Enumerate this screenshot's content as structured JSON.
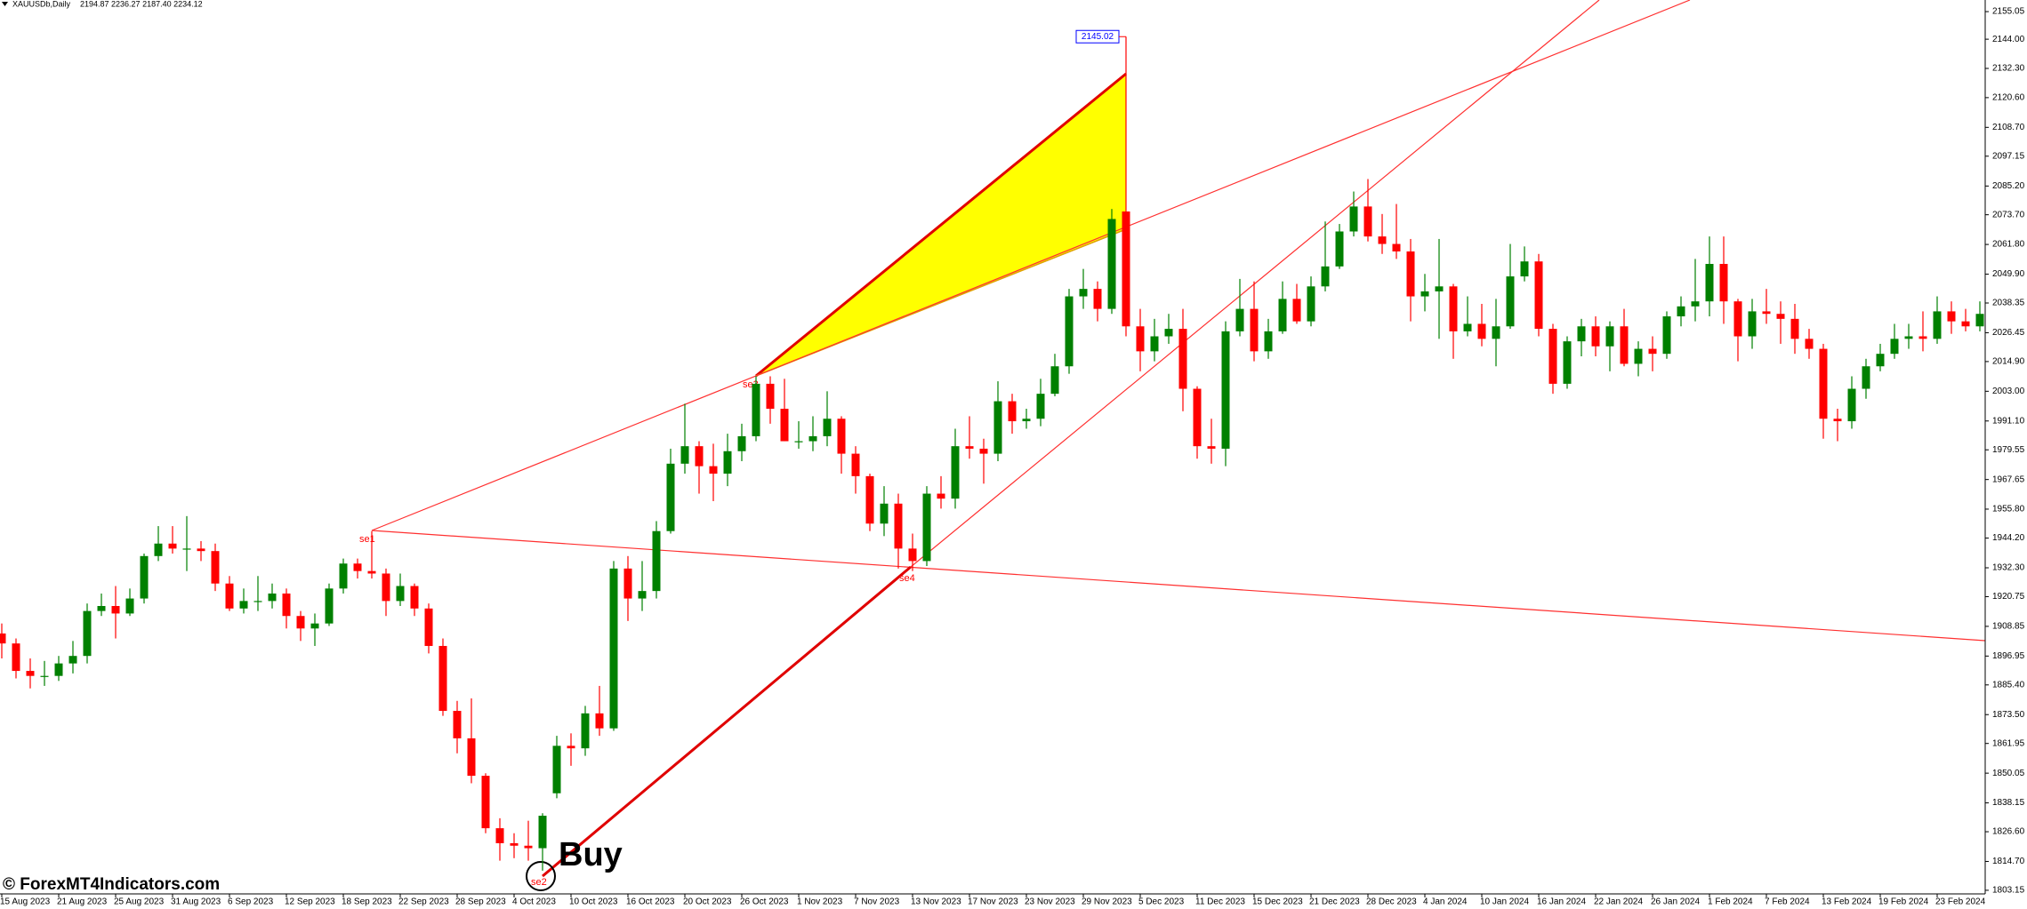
{
  "chart_data": {
    "type": "candlestick",
    "symbol": "XAUUSDb,Daily",
    "header_values": "2194.87 2236.27 2187.40 2234.12",
    "watermark": "© ForexMT4Indicators.com",
    "annotations": [
      "se1",
      "se2",
      "se3",
      "se4",
      "Buy"
    ],
    "bull_color": "#008000",
    "bear_color": "#ff0000",
    "categories": [
      "15 Aug 2023",
      null,
      null,
      null,
      "21 Aug 2023",
      null,
      null,
      null,
      "25 Aug 2023",
      null,
      null,
      null,
      "31 Aug 2023",
      null,
      null,
      null,
      "6 Sep 2023",
      null,
      null,
      null,
      "12 Sep 2023",
      null,
      null,
      null,
      "18 Sep 2023",
      null,
      null,
      null,
      "22 Sep 2023",
      null,
      null,
      null,
      "28 Sep 2023",
      null,
      null,
      null,
      "4 Oct 2023",
      null,
      null,
      null,
      "10 Oct 2023",
      null,
      null,
      null,
      "16 Oct 2023",
      null,
      null,
      null,
      "20 Oct 2023",
      null,
      null,
      null,
      "26 Oct 2023",
      null,
      null,
      null,
      "1 Nov 2023",
      null,
      null,
      null,
      "7 Nov 2023",
      null,
      null,
      null,
      "13 Nov 2023",
      null,
      null,
      null,
      "17 Nov 2023",
      null,
      null,
      null,
      "23 Nov 2023",
      null,
      null,
      null,
      "29 Nov 2023",
      null,
      null,
      null,
      "5 Dec 2023",
      null,
      null,
      null,
      "11 Dec 2023",
      null,
      null,
      null,
      "15 Dec 2023",
      null,
      null,
      null,
      "21 Dec 2023",
      null,
      null,
      null,
      "28 Dec 2023",
      null,
      null,
      null,
      "4 Jan 2024",
      null,
      null,
      null,
      "10 Jan 2024",
      null,
      null,
      null,
      "16 Jan 2024",
      null,
      null,
      null,
      "22 Jan 2024",
      null,
      null,
      null,
      "26 Jan 2024",
      null,
      null,
      null,
      "1 Feb 2024",
      null,
      null,
      null,
      "7 Feb 2024",
      null,
      null,
      null,
      "13 Feb 2024",
      null,
      null,
      null,
      "19 Feb 2024",
      null,
      null,
      null,
      "23 Feb 2024",
      null,
      null,
      null
    ],
    "open": [
      1906,
      1902,
      1891,
      1889,
      1889,
      1894,
      1897,
      1915,
      1917,
      1914,
      1920,
      1937,
      1942,
      1940,
      1940,
      1939,
      1926,
      1916,
      1919,
      1919,
      1922,
      1913,
      1908,
      1910,
      1924,
      1934,
      1931,
      1930,
      1919,
      1925,
      1916,
      1901,
      1875,
      1864,
      1849,
      1828,
      1822,
      1821,
      1820,
      1842,
      1861,
      1860,
      1874,
      1868,
      1932,
      1920,
      1923,
      1947,
      1974,
      1981,
      1973,
      1970,
      1979,
      1985,
      2006,
      1996,
      1983,
      1983,
      1985,
      1992,
      1978,
      1969,
      1950,
      1958,
      1940,
      1935,
      1962,
      1960,
      1981,
      1980,
      1978,
      1999,
      1991,
      1992,
      2002,
      2013,
      2041,
      2044,
      2036,
      2075,
      2029,
      2019,
      2025,
      2028,
      2004,
      1981,
      1980,
      2027,
      2036,
      2019,
      2027,
      2040,
      2031,
      2045,
      2053,
      2067,
      2077,
      2065,
      2062,
      2059,
      2041,
      2043,
      2045,
      2027,
      2030,
      2024,
      2029,
      2049,
      2055,
      2028,
      2006,
      2023,
      2029,
      2021,
      2029,
      2014,
      2020,
      2018,
      2033,
      2037,
      2039,
      2054,
      2039,
      2025,
      2035,
      2034,
      2032,
      2024,
      2020,
      1992,
      1991,
      2004,
      2013,
      2018,
      2024,
      2025,
      2024,
      2035,
      2031,
      2029
    ],
    "high": [
      1910,
      1904,
      1896,
      1895,
      1897,
      1903,
      1918,
      1922,
      1925,
      1924,
      1938,
      1949,
      1949,
      1953,
      1943,
      1942,
      1929,
      1924,
      1929,
      1926,
      1924,
      1915,
      1914,
      1926,
      1936,
      1936,
      1947,
      1932,
      1930,
      1926,
      1918,
      1904,
      1879,
      1880,
      1850,
      1832,
      1826,
      1831,
      1834,
      1865,
      1866,
      1877,
      1885,
      1935,
      1937,
      1935,
      1951,
      1980,
      1998,
      1983,
      1982,
      1986,
      1990,
      2009,
      2009,
      2008,
      1991,
      1993,
      2003,
      1993,
      1981,
      1970,
      1965,
      1962,
      1946,
      1965,
      1969,
      1988,
      1993,
      1984,
      2007,
      2002,
      1996,
      2008,
      2018,
      2044,
      2052,
      2047,
      2076,
      2145.02,
      2036,
      2032,
      2034,
      2036,
      2005,
      1992,
      2031,
      2048,
      2047,
      2032,
      2047,
      2046,
      2049,
      2071,
      2070,
      2083,
      2088,
      2074,
      2078,
      2064,
      2050,
      2064,
      2046,
      2041,
      2038,
      2040,
      2062,
      2061,
      2058,
      2030,
      2025,
      2032,
      2033,
      2031,
      2036,
      2023,
      2025,
      2035,
      2041,
      2056,
      2065,
      2065,
      2040,
      2040,
      2044,
      2039,
      2038,
      2028,
      2022,
      1996,
      2009,
      2016,
      2022,
      2030,
      2030,
      2035,
      2041,
      2039,
      2036,
      2039
    ],
    "low": [
      1896,
      1888,
      1884,
      1885,
      1887,
      1890,
      1894,
      1913,
      1904,
      1913,
      1918,
      1935,
      1938,
      1931,
      1935,
      1923,
      1915,
      1914,
      1915,
      1916,
      1908,
      1903,
      1901,
      1909,
      1922,
      1928,
      1928,
      1913,
      1917,
      1913,
      1898,
      1873,
      1858,
      1846,
      1826,
      1815,
      1816,
      1815,
      1811,
      1840,
      1853,
      1857,
      1865,
      1867,
      1911,
      1915,
      1920,
      1946,
      1970,
      1962,
      1959,
      1965,
      1975,
      1983,
      1990,
      1983,
      1980,
      1979,
      1981,
      1970,
      1962,
      1947,
      1945,
      1932,
      1931,
      1933,
      1956,
      1956,
      1976,
      1966,
      1975,
      1986,
      1988,
      1989,
      2001,
      2010,
      2036,
      2031,
      2034,
      2025,
      2011,
      2015,
      2022,
      1995,
      1976,
      1974,
      1973,
      2025,
      2015,
      2016,
      2026,
      2030,
      2029,
      2043,
      2052,
      2065,
      2063,
      2058,
      2056,
      2031,
      2035,
      2024,
      2016,
      2025,
      2021,
      2013,
      2028,
      2047,
      2025,
      2002,
      2004,
      2017,
      2017,
      2011,
      2013,
      2009,
      2011,
      2016,
      2029,
      2031,
      2033,
      2030,
      2015,
      2020,
      2030,
      2022,
      2018,
      2016,
      1984,
      1983,
      1988,
      2000,
      2011,
      2016,
      2020,
      2019,
      2022,
      2026,
      2027,
      2027
    ],
    "close": [
      1902,
      1891,
      1889,
      1889,
      1894,
      1897,
      1915,
      1917,
      1914,
      1920,
      1937,
      1942,
      1940,
      1940,
      1939,
      1926,
      1916,
      1919,
      1919,
      1922,
      1913,
      1908,
      1910,
      1924,
      1934,
      1931,
      1930,
      1919,
      1925,
      1916,
      1901,
      1875,
      1864,
      1849,
      1828,
      1822,
      1821,
      1820,
      1833,
      1861,
      1860,
      1874,
      1868,
      1932,
      1920,
      1923,
      1947,
      1974,
      1981,
      1973,
      1970,
      1979,
      1985,
      2006,
      1996,
      1983,
      1983,
      1985,
      1992,
      1978,
      1969,
      1950,
      1958,
      1940,
      1935,
      1962,
      1960,
      1981,
      1980,
      1978,
      1999,
      1991,
      1992,
      2002,
      2013,
      2041,
      2044,
      2036,
      2072,
      2029,
      2019,
      2025,
      2028,
      2004,
      1981,
      1980,
      2027,
      2036,
      2019,
      2027,
      2040,
      2031,
      2045,
      2053,
      2067,
      2077,
      2065,
      2062,
      2059,
      2041,
      2043,
      2045,
      2027,
      2030,
      2024,
      2029,
      2049,
      2055,
      2028,
      2006,
      2023,
      2029,
      2021,
      2029,
      2014,
      2020,
      2018,
      2033,
      2037,
      2039,
      2054,
      2039,
      2025,
      2035,
      2034,
      2032,
      2024,
      2020,
      1992,
      1991,
      2004,
      2013,
      2018,
      2024,
      2025,
      2024,
      2035,
      2031,
      2029,
      2034
    ],
    "ylim": [
      1801.7,
      2159.7
    ],
    "yticks": [
      2155.05,
      {
        "value": 2144.0,
        "label": "2144.00"
      },
      {
        "value": 2132.3,
        "label": "2132.30"
      },
      {
        "value": 2120.6,
        "label": "2120.60"
      },
      {
        "value": 2108.7,
        "label": "2108.70"
      },
      2097.15,
      {
        "value": 2085.2,
        "label": "2085.20"
      },
      {
        "value": 2073.7,
        "label": "2073.70"
      },
      {
        "value": 2061.8,
        "label": "2061.80"
      },
      {
        "value": 2049.9,
        "label": "2049.90"
      },
      2038.35,
      2026.45,
      {
        "value": 2014.9,
        "label": "2014.90"
      },
      {
        "value": 2003.0,
        "label": "2003.00"
      },
      {
        "value": 1991.1,
        "label": "1991.10"
      },
      1979.55,
      1967.65,
      {
        "value": 1955.8,
        "label": "1955.80"
      },
      {
        "value": 1944.2,
        "label": "1944.20"
      },
      {
        "value": 1932.3,
        "label": "1932.30"
      },
      1920.75,
      1908.85,
      1896.95,
      {
        "value": 1885.4,
        "label": "1885.40"
      },
      {
        "value": 1873.5,
        "label": "1873.50"
      },
      1861.95,
      1850.05,
      1838.15,
      {
        "value": 1826.6,
        "label": "1826.60"
      },
      {
        "value": 1814.7,
        "label": "1814.70"
      },
      1803.15
    ]
  }
}
